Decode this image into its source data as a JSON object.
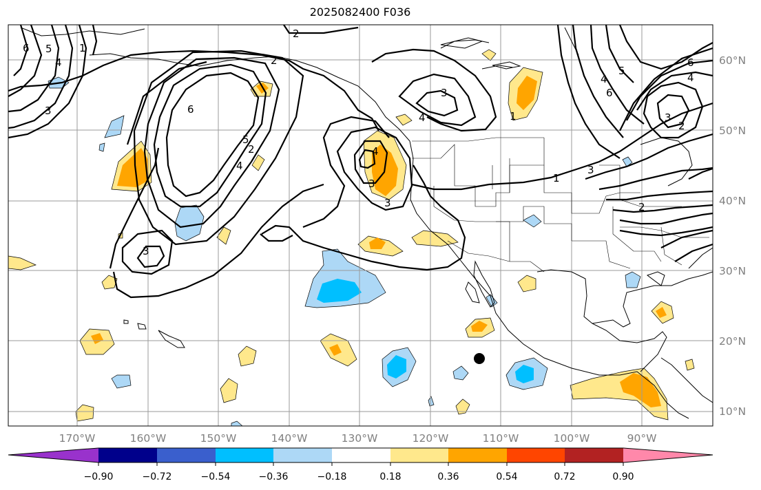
{
  "title": "2025082400 F036",
  "lat_labels": [
    "60°N",
    "50°N",
    "40°N",
    "30°N",
    "20°N",
    "10°N"
  ],
  "lon_labels": [
    "170°W",
    "160°W",
    "150°W",
    "140°W",
    "130°W",
    "120°W",
    "110°W",
    "100°W",
    "90°W"
  ],
  "colorbar": {
    "ticks": [
      "−0.90",
      "−0.72",
      "−0.54",
      "−0.36",
      "−0.18",
      "0.18",
      "0.36",
      "0.54",
      "0.72",
      "0.90"
    ],
    "colors": [
      "#9932CC",
      "#00008B",
      "#3A5FCD",
      "#00BFFF",
      "#ADD8F6",
      "#FFFFFF",
      "#FFE88C",
      "#FFA500",
      "#FF4500",
      "#B22222",
      "#FF88AA"
    ]
  },
  "contour_labels": [
    "2",
    "2",
    "6",
    "5",
    "4",
    "2",
    "1",
    "3",
    "6",
    "5",
    "4",
    "3",
    "3",
    "4",
    "3",
    "3",
    "4",
    "1",
    "1",
    "3",
    "2",
    "4",
    "5",
    "6",
    "6",
    "4",
    "3",
    "2"
  ],
  "colors": {
    "contour": "#000000",
    "grid": "#9a9a9a",
    "coast": "#000000",
    "tc_marker": "#000000"
  }
}
